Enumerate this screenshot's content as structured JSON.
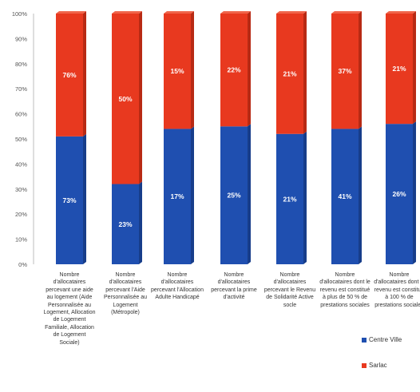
{
  "chart_data": {
    "type": "bar",
    "stacked": true,
    "percent_axis": true,
    "ylim": [
      0,
      100
    ],
    "yticks": [
      "0%",
      "10%",
      "20%",
      "30%",
      "40%",
      "50%",
      "60%",
      "70%",
      "80%",
      "90%",
      "100%"
    ],
    "grid": false,
    "legend_position": "bottom-right",
    "categories": [
      "Nombre d'allocataires percevant une aide au logement (Aide Personnalisée au Logement, Allocation de Logement Familiale, Allocation de Logement Sociale)",
      "Nombre d'allocataires percevant l'Aide Personnalisée au Logement (Métropole)",
      "Nombre d'allocataires percevant l'Allocation Adulte Handicapé",
      "Nombre d'allocataires percevant la prime d'activité",
      "Nombre d'allocataires percevant le Revenu de Solidarité Active socle",
      "Nombre d'allocataires dont le revenu est constitué à plus de 50 % de prestations sociales",
      "Nombre d'allocataires dont le revenu est constitué à 100 % de prestations sociales"
    ],
    "series": [
      {
        "name": "Centre Ville",
        "color": "#1f4fb0",
        "segment_heights": [
          51,
          32,
          54,
          55,
          52,
          54,
          56
        ],
        "labels": [
          "73%",
          "23%",
          "17%",
          "25%",
          "21%",
          "41%",
          "26%"
        ]
      },
      {
        "name": "Sarlac",
        "color": "#e8391f",
        "segment_heights": [
          49,
          68,
          46,
          45,
          48,
          46,
          44
        ],
        "labels": [
          "76%",
          "50%",
          "15%",
          "22%",
          "21%",
          "37%",
          "21%"
        ]
      }
    ]
  }
}
